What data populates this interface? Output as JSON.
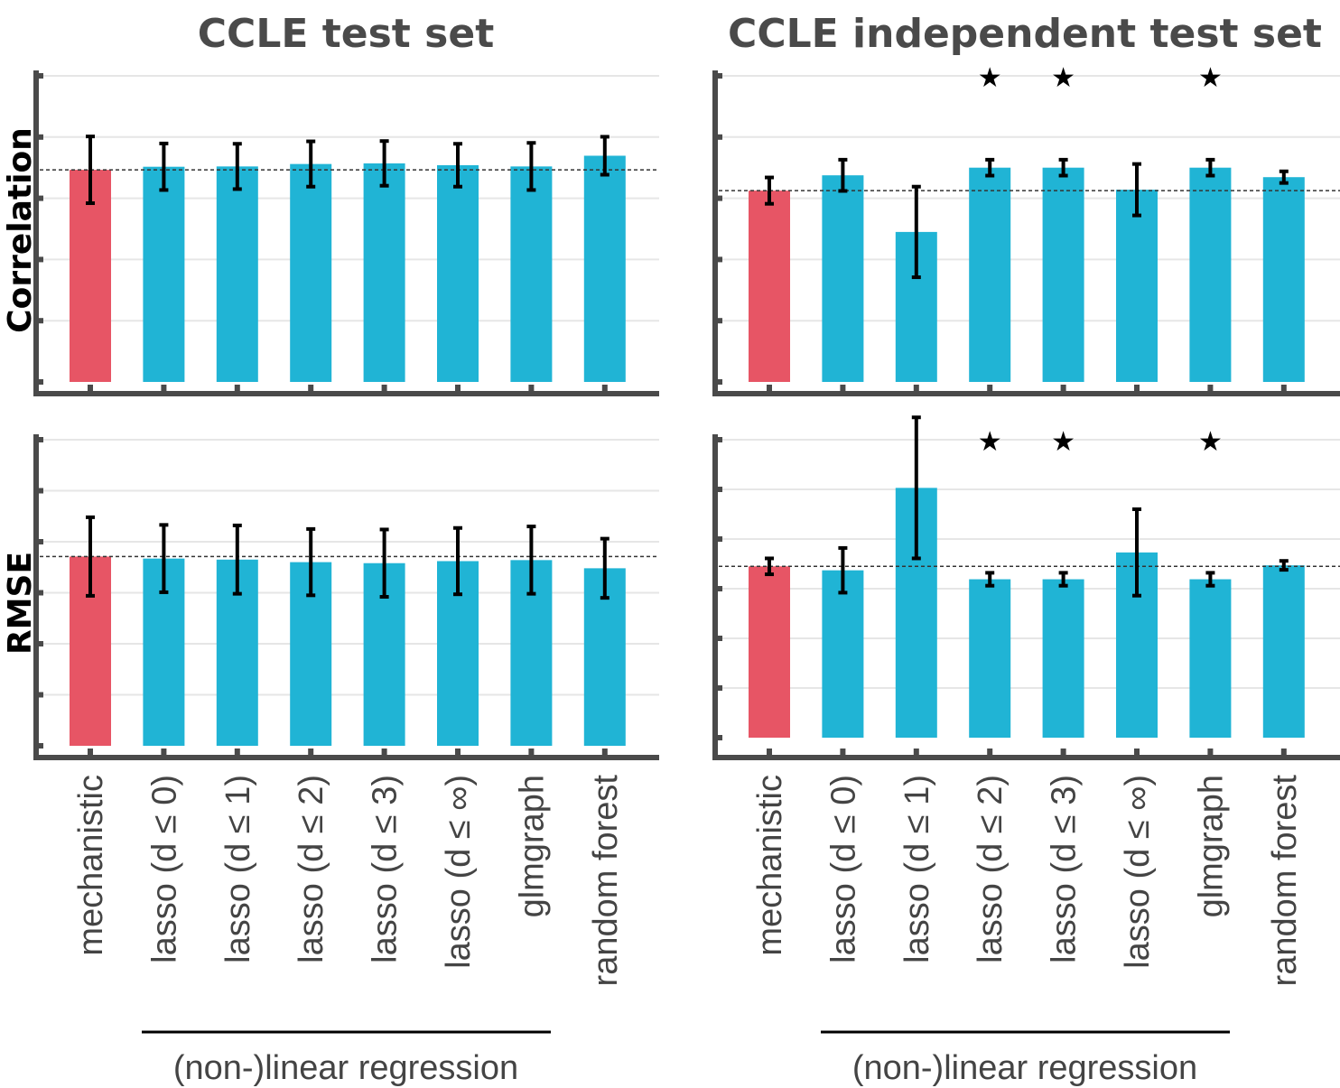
{
  "colors": {
    "mechanistic": "#e75565",
    "regression": "#20b4d5",
    "axis": "#4a4a4a",
    "grid": "#e6e6e6",
    "errorbar": "#000000"
  },
  "group_label_left": "(non-)linear regression",
  "group_label_right": "(non-)linear regression",
  "chart_data": [
    {
      "type": "bar",
      "title": "CCLE test set",
      "ylabel": "Correlation",
      "categories": [
        "mechanistic",
        "lasso (d ≤ 0)",
        "lasso (d ≤ 1)",
        "lasso (d ≤ 2)",
        "lasso (d ≤ 3)",
        "lasso (d ≤ ∞)",
        "glmgraph",
        "random forest"
      ],
      "values": [
        0.693,
        0.703,
        0.704,
        0.712,
        0.714,
        0.708,
        0.704,
        0.739
      ],
      "errors": [
        0.109,
        0.076,
        0.074,
        0.074,
        0.073,
        0.07,
        0.077,
        0.062
      ],
      "reference_line": 0.693,
      "ylim": [
        0,
        1
      ],
      "yticks": [
        0,
        0.2,
        0.4,
        0.6,
        0.8,
        1.0
      ],
      "significant": [
        false,
        false,
        false,
        false,
        false,
        false,
        false,
        false
      ],
      "grid": true
    },
    {
      "type": "bar",
      "title": "CCLE independent test set",
      "ylabel": "",
      "categories": [
        "mechanistic",
        "lasso (d ≤ 0)",
        "lasso (d ≤ 1)",
        "lasso (d ≤ 2)",
        "lasso (d ≤ 3)",
        "lasso (d ≤ ∞)",
        "glmgraph",
        "random forest"
      ],
      "values": [
        0.625,
        0.675,
        0.49,
        0.7,
        0.7,
        0.628,
        0.7,
        0.669
      ],
      "errors": [
        0.043,
        0.051,
        0.148,
        0.026,
        0.026,
        0.084,
        0.026,
        0.019
      ],
      "reference_line": 0.625,
      "ylim": [
        0,
        1
      ],
      "yticks": [
        0,
        0.2,
        0.4,
        0.6,
        0.8,
        1.0
      ],
      "significant": [
        false,
        false,
        false,
        true,
        true,
        false,
        true,
        false
      ],
      "grid": true
    },
    {
      "type": "bar",
      "title": "",
      "ylabel": "RMSE",
      "categories": [
        "mechanistic",
        "lasso (d ≤ 0)",
        "lasso (d ≤ 1)",
        "lasso (d ≤ 2)",
        "lasso (d ≤ 3)",
        "lasso (d ≤ ∞)",
        "glmgraph",
        "random forest"
      ],
      "values": [
        3.71,
        3.67,
        3.65,
        3.6,
        3.58,
        3.62,
        3.64,
        3.48
      ],
      "errors": [
        0.77,
        0.66,
        0.67,
        0.65,
        0.66,
        0.65,
        0.66,
        0.58
      ],
      "reference_line": 3.71,
      "ylim": [
        0,
        6
      ],
      "yticks": [
        0,
        1,
        2,
        3,
        4,
        5,
        6
      ],
      "significant": [
        false,
        false,
        false,
        false,
        false,
        false,
        false,
        false
      ],
      "grid": true
    },
    {
      "type": "bar",
      "title": "",
      "ylabel": "",
      "categories": [
        "mechanistic",
        "lasso (d ≤ 0)",
        "lasso (d ≤ 1)",
        "lasso (d ≤ 2)",
        "lasso (d ≤ 3)",
        "lasso (d ≤ ∞)",
        "glmgraph",
        "random forest"
      ],
      "values": [
        3.45,
        3.37,
        5.03,
        3.19,
        3.19,
        3.73,
        3.19,
        3.47
      ],
      "errors": [
        0.16,
        0.45,
        1.42,
        0.13,
        0.13,
        0.87,
        0.13,
        0.09
      ],
      "reference_line": 3.45,
      "ylim": [
        0,
        6
      ],
      "yticks": [
        0,
        1,
        2,
        3,
        4,
        5,
        6
      ],
      "significant": [
        false,
        false,
        false,
        true,
        true,
        false,
        true,
        false
      ],
      "grid": true
    }
  ]
}
